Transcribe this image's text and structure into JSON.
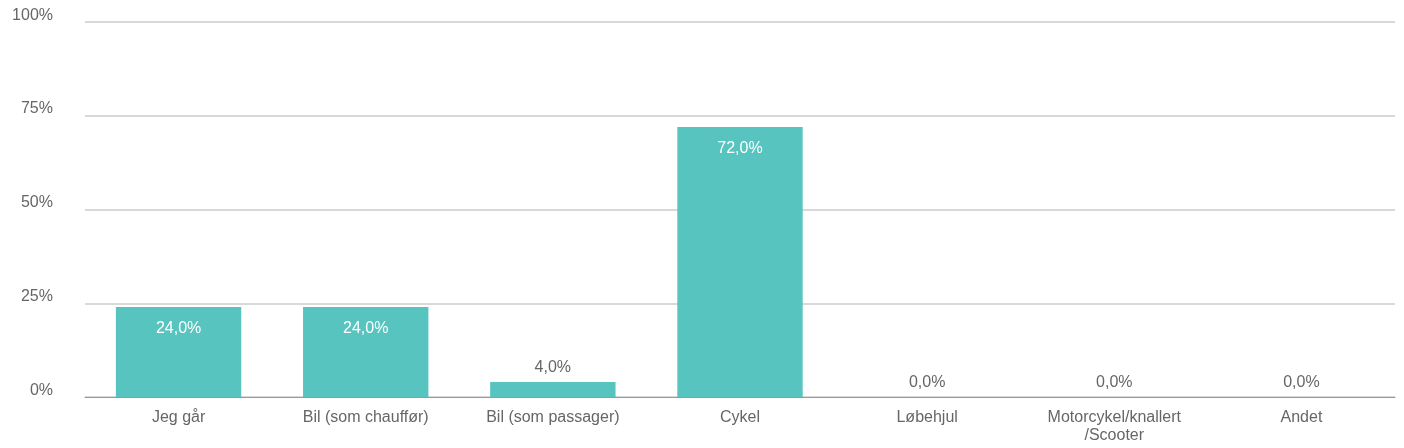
{
  "chart_data": {
    "type": "bar",
    "categories": [
      "Jeg går",
      "Bil (som chauffør)",
      "Bil (som passager)",
      "Cykel",
      "Løbehjul",
      "Motorcykel/knallert/Scooter",
      "Andet"
    ],
    "values": [
      24,
      24,
      4,
      72,
      0,
      0,
      0
    ],
    "value_labels": [
      "24,0%",
      "24,0%",
      "4,0%",
      "72,0%",
      "0,0%",
      "0,0%",
      "0,0%"
    ],
    "color": "#57c4c0",
    "ylim": [
      0,
      100
    ],
    "yticks": [
      {
        "value": 0,
        "label": "0%"
      },
      {
        "value": 25,
        "label": "25%"
      },
      {
        "value": 50,
        "label": "50%"
      },
      {
        "value": 75,
        "label": "75%"
      },
      {
        "value": 100,
        "label": "100%"
      }
    ],
    "grid": "y"
  }
}
